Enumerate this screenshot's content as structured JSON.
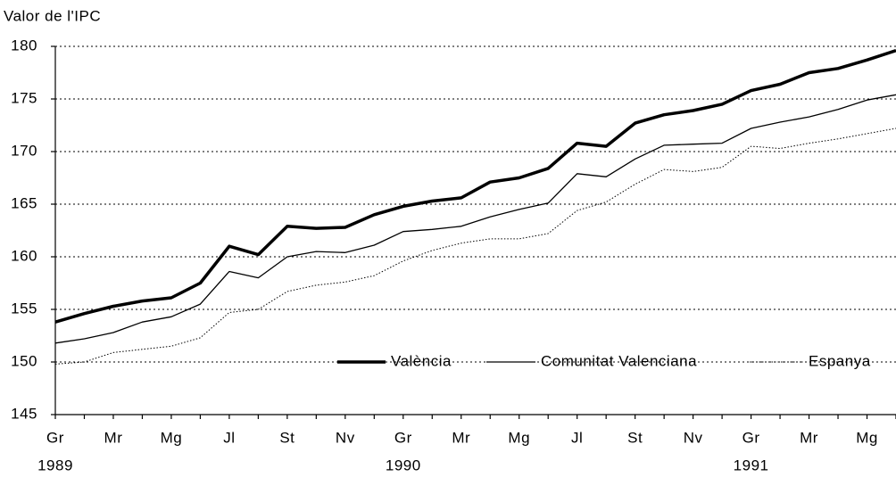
{
  "chart_data": {
    "type": "line",
    "title": "Valor de l'IPC",
    "categories": [
      "Gr",
      null,
      "Mr",
      null,
      "Mg",
      null,
      "Jl",
      null,
      "St",
      null,
      "Nv",
      null,
      "Gr",
      null,
      "Mr",
      null,
      "Mg",
      null,
      "Jl",
      null,
      "St",
      null,
      "Nv",
      null,
      "Gr",
      null,
      "Mr",
      null,
      "Mg",
      null
    ],
    "year_labels": [
      "1989",
      null,
      null,
      null,
      null,
      null,
      null,
      null,
      null,
      null,
      null,
      null,
      "1990",
      null,
      null,
      null,
      null,
      null,
      null,
      null,
      null,
      null,
      null,
      null,
      "1991",
      null,
      null,
      null,
      null,
      null
    ],
    "series": [
      {
        "name": "València",
        "color": "#000000",
        "line_width": 3.5,
        "dashed": false,
        "values": [
          153.8,
          154.6,
          155.3,
          155.8,
          156.1,
          157.5,
          161.0,
          160.2,
          162.9,
          162.7,
          162.8,
          164.0,
          164.8,
          165.3,
          165.6,
          167.1,
          167.5,
          168.4,
          170.8,
          170.5,
          172.7,
          173.5,
          173.9,
          174.5,
          175.8,
          176.4,
          177.5,
          177.9,
          178.7,
          179.6
        ]
      },
      {
        "name": "Comunitat Valenciana",
        "color": "#000000",
        "line_width": 1.3,
        "dashed": false,
        "values": [
          151.8,
          152.2,
          152.8,
          153.8,
          154.3,
          155.5,
          158.6,
          158.0,
          160.0,
          160.5,
          160.4,
          161.1,
          162.4,
          162.6,
          162.9,
          163.8,
          164.5,
          165.1,
          167.9,
          167.6,
          169.3,
          170.6,
          170.7,
          170.8,
          172.2,
          172.8,
          173.3,
          174.0,
          174.9,
          175.4
        ]
      },
      {
        "name": "Espanya",
        "color": "#000000",
        "line_width": 1,
        "dashed": true,
        "values": [
          149.8,
          150.0,
          150.9,
          151.2,
          151.5,
          152.3,
          154.7,
          155.0,
          156.7,
          157.3,
          157.6,
          158.2,
          159.6,
          160.6,
          161.3,
          161.7,
          161.7,
          162.2,
          164.4,
          165.2,
          166.9,
          168.3,
          168.1,
          168.5,
          170.5,
          170.3,
          170.8,
          171.2,
          171.7,
          172.2
        ]
      }
    ],
    "ylim": [
      145,
      180
    ],
    "yticks": [
      145,
      150,
      155,
      160,
      165,
      170,
      175,
      180
    ],
    "grid": true
  }
}
